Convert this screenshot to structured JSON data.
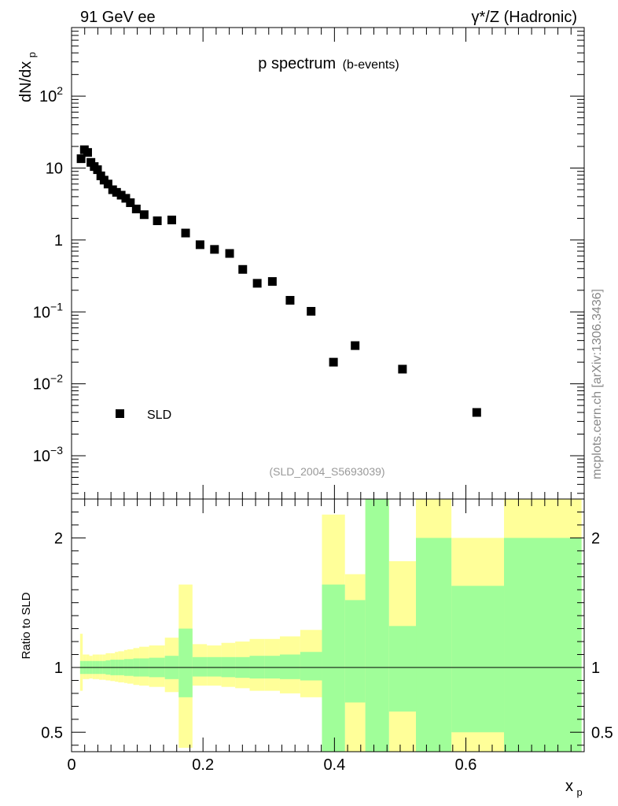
{
  "header": {
    "left": "91 GeV ee",
    "right": "γ*/Z (Hadronic)"
  },
  "watermark": "mcplots.cern.ch [arXiv:1306.3436]",
  "chart_data": [
    {
      "type": "scatter",
      "title": "p spectrum",
      "subtitle": "(b-events)",
      "ylabel_main": "dN/dx",
      "ylabel_sub": "p",
      "yscale": "log",
      "ylim": [
        0.00025,
        900
      ],
      "xlim": [
        0,
        0.78
      ],
      "yticks": [
        {
          "value": 0.001,
          "base": "10",
          "exp": "−3"
        },
        {
          "value": 0.01,
          "base": "10",
          "exp": "−2"
        },
        {
          "value": 0.1,
          "base": "10",
          "exp": "−1"
        },
        {
          "value": 1,
          "base": "1",
          "exp": ""
        },
        {
          "value": 10,
          "base": "10",
          "exp": ""
        },
        {
          "value": 100,
          "base": "10",
          "exp": "2"
        }
      ],
      "legend": {
        "label": "SLD",
        "position": "bottom-left"
      },
      "reference": "(SLD_2004_S5693039)",
      "series": [
        {
          "name": "SLD",
          "x": [
            0.0145,
            0.0195,
            0.0245,
            0.0295,
            0.0345,
            0.0395,
            0.0445,
            0.0495,
            0.0555,
            0.0625,
            0.0685,
            0.0755,
            0.0825,
            0.0895,
            0.0985,
            0.1105,
            0.1305,
            0.1525,
            0.1735,
            0.1955,
            0.2175,
            0.2405,
            0.2605,
            0.2825,
            0.3055,
            0.3325,
            0.3645,
            0.3985,
            0.4315,
            0.5035,
            0.6165
          ],
          "y": [
            13.5,
            18,
            16.5,
            12,
            10.5,
            9.5,
            7.8,
            6.8,
            6.0,
            5.0,
            4.6,
            4.2,
            3.8,
            3.3,
            2.7,
            2.25,
            1.85,
            1.9,
            1.25,
            0.86,
            0.74,
            0.65,
            0.39,
            0.25,
            0.265,
            0.145,
            0.102,
            0.02,
            0.034,
            0.016,
            0.004
          ]
        }
      ]
    },
    {
      "type": "area",
      "ylabel": "Ratio to SLD",
      "xlabel_main": "x",
      "xlabel_sub": "p",
      "xlim": [
        0,
        0.78
      ],
      "ylim": [
        0.35,
        2.3
      ],
      "xticks": [
        "0",
        "0.2",
        "0.4",
        "0.6"
      ],
      "xtick_values": [
        0,
        0.2,
        0.4,
        0.6
      ],
      "yticks": [
        "0.5",
        "1",
        "2"
      ],
      "ytick_values": [
        0.5,
        1,
        2
      ],
      "bins": [
        {
          "x0": 0.013,
          "x1": 0.017,
          "g": [
            0.95,
            1.05
          ],
          "y": [
            0.82,
            1.26
          ]
        },
        {
          "x0": 0.017,
          "x1": 0.022,
          "g": [
            0.95,
            1.05
          ],
          "y": [
            0.91,
            1.1
          ]
        },
        {
          "x0": 0.022,
          "x1": 0.027,
          "g": [
            0.95,
            1.05
          ],
          "y": [
            0.91,
            1.1
          ]
        },
        {
          "x0": 0.027,
          "x1": 0.032,
          "g": [
            0.95,
            1.05
          ],
          "y": [
            0.915,
            1.09
          ]
        },
        {
          "x0": 0.032,
          "x1": 0.037,
          "g": [
            0.95,
            1.05
          ],
          "y": [
            0.91,
            1.1
          ]
        },
        {
          "x0": 0.037,
          "x1": 0.042,
          "g": [
            0.95,
            1.05
          ],
          "y": [
            0.91,
            1.1
          ]
        },
        {
          "x0": 0.042,
          "x1": 0.047,
          "g": [
            0.95,
            1.05
          ],
          "y": [
            0.905,
            1.1
          ]
        },
        {
          "x0": 0.047,
          "x1": 0.052,
          "g": [
            0.95,
            1.05
          ],
          "y": [
            0.905,
            1.1
          ]
        },
        {
          "x0": 0.052,
          "x1": 0.059,
          "g": [
            0.945,
            1.055
          ],
          "y": [
            0.9,
            1.11
          ]
        },
        {
          "x0": 0.059,
          "x1": 0.066,
          "g": [
            0.94,
            1.06
          ],
          "y": [
            0.895,
            1.11
          ]
        },
        {
          "x0": 0.066,
          "x1": 0.071,
          "g": [
            0.94,
            1.06
          ],
          "y": [
            0.89,
            1.12
          ]
        },
        {
          "x0": 0.071,
          "x1": 0.08,
          "g": [
            0.94,
            1.06
          ],
          "y": [
            0.885,
            1.125
          ]
        },
        {
          "x0": 0.08,
          "x1": 0.085,
          "g": [
            0.935,
            1.065
          ],
          "y": [
            0.88,
            1.135
          ]
        },
        {
          "x0": 0.085,
          "x1": 0.094,
          "g": [
            0.935,
            1.065
          ],
          "y": [
            0.875,
            1.14
          ]
        },
        {
          "x0": 0.094,
          "x1": 0.103,
          "g": [
            0.93,
            1.07
          ],
          "y": [
            0.865,
            1.15
          ]
        },
        {
          "x0": 0.103,
          "x1": 0.118,
          "g": [
            0.93,
            1.07
          ],
          "y": [
            0.86,
            1.16
          ]
        },
        {
          "x0": 0.118,
          "x1": 0.142,
          "g": [
            0.925,
            1.075
          ],
          "y": [
            0.85,
            1.17
          ]
        },
        {
          "x0": 0.142,
          "x1": 0.163,
          "g": [
            0.91,
            1.09
          ],
          "y": [
            0.81,
            1.23
          ]
        },
        {
          "x0": 0.163,
          "x1": 0.184,
          "g": [
            0.77,
            1.3
          ],
          "y": [
            0.38,
            1.64
          ]
        },
        {
          "x0": 0.184,
          "x1": 0.206,
          "g": [
            0.93,
            1.08
          ],
          "y": [
            0.86,
            1.18
          ]
        },
        {
          "x0": 0.206,
          "x1": 0.228,
          "g": [
            0.93,
            1.08
          ],
          "y": [
            0.86,
            1.17
          ]
        },
        {
          "x0": 0.228,
          "x1": 0.249,
          "g": [
            0.925,
            1.08
          ],
          "y": [
            0.85,
            1.19
          ]
        },
        {
          "x0": 0.249,
          "x1": 0.271,
          "g": [
            0.92,
            1.08
          ],
          "y": [
            0.84,
            1.2
          ]
        },
        {
          "x0": 0.271,
          "x1": 0.294,
          "g": [
            0.915,
            1.09
          ],
          "y": [
            0.82,
            1.22
          ]
        },
        {
          "x0": 0.294,
          "x1": 0.317,
          "g": [
            0.915,
            1.09
          ],
          "y": [
            0.82,
            1.22
          ]
        },
        {
          "x0": 0.317,
          "x1": 0.348,
          "g": [
            0.91,
            1.1
          ],
          "y": [
            0.8,
            1.24
          ]
        },
        {
          "x0": 0.348,
          "x1": 0.381,
          "g": [
            0.9,
            1.12
          ],
          "y": [
            0.77,
            1.29
          ]
        },
        {
          "x0": 0.381,
          "x1": 0.416,
          "g": [
            0.35,
            1.64
          ],
          "y": [
            0.35,
            2.18
          ]
        },
        {
          "x0": 0.416,
          "x1": 0.447,
          "g": [
            0.73,
            1.52
          ],
          "y": [
            0.35,
            1.72
          ]
        },
        {
          "x0": 0.447,
          "x1": 0.483,
          "g": [
            0.35,
            2.3
          ],
          "y": [
            0.35,
            2.3
          ]
        },
        {
          "x0": 0.483,
          "x1": 0.524,
          "g": [
            0.66,
            1.32
          ],
          "y": [
            0.35,
            1.82
          ]
        },
        {
          "x0": 0.524,
          "x1": 0.578,
          "g": [
            0.35,
            2.0
          ],
          "y": [
            0.35,
            2.3
          ]
        },
        {
          "x0": 0.578,
          "x1": 0.658,
          "g": [
            0.5,
            1.63
          ],
          "y": [
            0.35,
            2.0
          ]
        },
        {
          "x0": 0.658,
          "x1": 0.776,
          "g": [
            0.35,
            2.0
          ],
          "y": [
            0.35,
            2.3
          ]
        }
      ]
    }
  ],
  "colors": {
    "inner_band": "#a0fe99",
    "outer_band": "#ffff99",
    "marker": "#000000",
    "reference_text": "#999999",
    "watermark": "#888888"
  }
}
